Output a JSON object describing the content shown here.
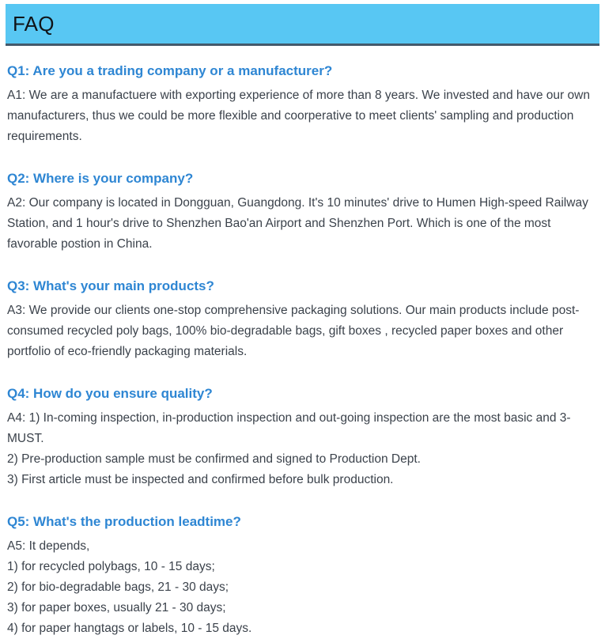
{
  "header": {
    "title": "FAQ"
  },
  "colors": {
    "header_bg": "#58C7F3",
    "header_border": "#43596B",
    "question_text": "#2E86D3",
    "body_text": "#3B424B"
  },
  "faq": {
    "items": [
      {
        "question": "Q1: Are you a trading company or a manufacturer?",
        "answers": [
          "A1: We are a manufactuere with exporting experience of more than 8 years. We invested and have our own manufacturers, thus we could be more flexible and coorperative to meet clients' sampling and production requirements."
        ]
      },
      {
        "question": "Q2: Where is your company?",
        "answers": [
          "A2: Our company is located in Dongguan, Guangdong. It's 10 minutes' drive to Humen High-speed Railway Station, and 1 hour's drive to Shenzhen Bao'an Airport and Shenzhen Port. Which is one of the most favorable postion in China."
        ]
      },
      {
        "question": "Q3: What's your main products?",
        "answers": [
          "A3: We provide our clients one-stop comprehensive packaging solutions. Our main products include post-consumed recycled poly bags, 100% bio-degradable bags, gift boxes , recycled paper boxes and other portfolio of eco-friendly packaging materials."
        ]
      },
      {
        "question": "Q4: How do you ensure quality?",
        "answers": [
          "A4: 1) In-coming inspection, in-production inspection and out-going inspection are the most basic and 3-MUST.",
          "2) Pre-production sample must be confirmed and signed to Production Dept.",
          "3) First article must be inspected and confirmed before bulk production."
        ]
      },
      {
        "question": "Q5: What's the production leadtime?",
        "answers": [
          "A5: It depends,",
          "1) for recycled polybags, 10 - 15 days;",
          "2) for bio-degradable bags, 21 - 30 days;",
          "3) for paper boxes, usually 21 - 30 days;",
          "4) for paper hangtags or labels, 10 - 15 days."
        ]
      }
    ]
  }
}
